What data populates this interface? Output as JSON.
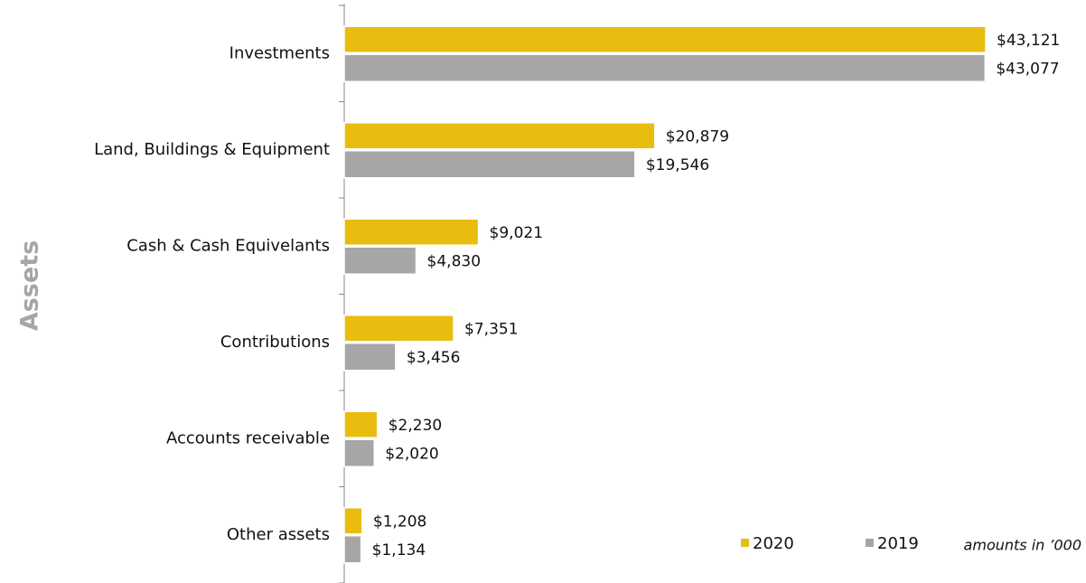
{
  "chart_data": {
    "type": "bar",
    "orientation": "horizontal",
    "y_label": "Assets",
    "annotation": "amounts in ’000",
    "categories": [
      "Investments",
      "Land, Buildings & Equipment",
      "Cash & Cash Equivelants",
      "Contributions",
      "Accounts receivable",
      "Other assets"
    ],
    "series": [
      {
        "name": "2020",
        "color": "#e8bd10",
        "values": [
          43121,
          20879,
          9021,
          7351,
          2230,
          1208
        ],
        "value_labels": [
          "$43,121",
          "$20,879",
          "$9,021",
          "$7,351",
          "$2,230",
          "$1,208"
        ]
      },
      {
        "name": "2019",
        "color": "#a6a6a6",
        "values": [
          43077,
          19546,
          4830,
          3456,
          2020,
          1134
        ],
        "value_labels": [
          "$43,077",
          "$19,546",
          "$4,830",
          "$3,456",
          "$2,020",
          "$1,134"
        ]
      }
    ],
    "xlim": [
      0,
      45000
    ],
    "legend": "lower right"
  }
}
